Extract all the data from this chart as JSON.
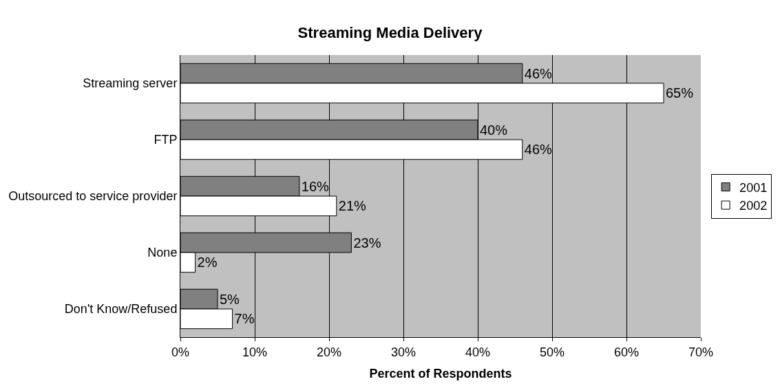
{
  "chart_data": {
    "type": "bar",
    "orientation": "horizontal",
    "title": "Streaming Media Delivery",
    "xlabel": "Percent of Respondents",
    "categories": [
      "Streaming server",
      "FTP",
      "Outsourced to service provider",
      "None",
      "Don't Know/Refused"
    ],
    "series": [
      {
        "name": "2001",
        "color": "#808080",
        "values": [
          46,
          40,
          16,
          23,
          5
        ],
        "value_labels": [
          "46%",
          "40%",
          "16%",
          "23%",
          "5%"
        ]
      },
      {
        "name": "2002",
        "color": "#ffffff",
        "values": [
          65,
          46,
          21,
          2,
          7
        ],
        "value_labels": [
          "65%",
          "46%",
          "21%",
          "2%",
          "7%"
        ]
      }
    ],
    "xlim": [
      0,
      70
    ],
    "xticks": [
      {
        "value": 0,
        "label": "0%"
      },
      {
        "value": 10,
        "label": "10%"
      },
      {
        "value": 20,
        "label": "20%"
      },
      {
        "value": 30,
        "label": "30%"
      },
      {
        "value": 40,
        "label": "40%"
      },
      {
        "value": 50,
        "label": "50%"
      },
      {
        "value": 60,
        "label": "60%"
      },
      {
        "value": 70,
        "label": "70%"
      }
    ],
    "grid": "x",
    "legend": "right"
  }
}
